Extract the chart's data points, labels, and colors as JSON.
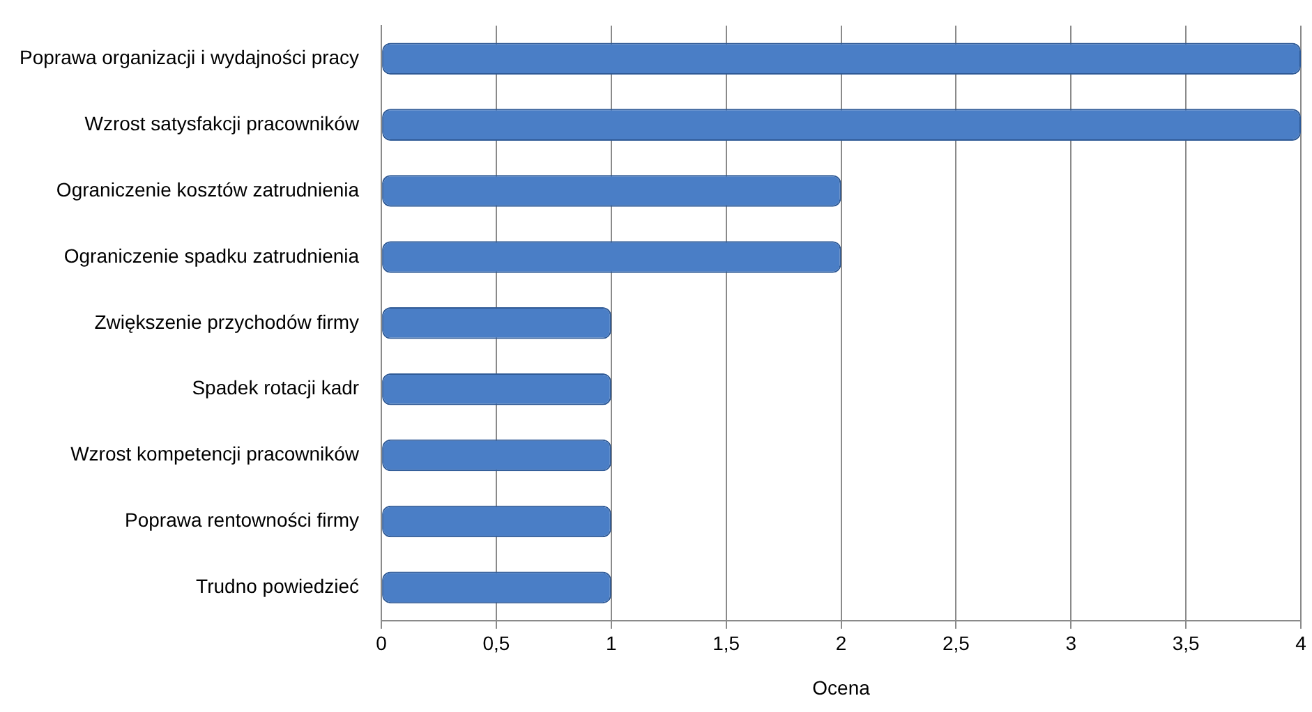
{
  "chart_data": {
    "type": "bar",
    "orientation": "horizontal",
    "xlabel": "Ocena",
    "categories": [
      "Poprawa organizacji i wydajności pracy",
      "Wzrost satysfakcji pracowników",
      "Ograniczenie kosztów zatrudnienia",
      "Ograniczenie spadku zatrudnienia",
      "Zwiększenie przychodów firmy",
      "Spadek rotacji kadr",
      "Wzrost kompetencji pracowników",
      "Poprawa rentowności firmy",
      "Trudno powiedzieć"
    ],
    "values": [
      4,
      4,
      2,
      2,
      1,
      1,
      1,
      1,
      1
    ],
    "color": "#4a7ec6",
    "xlim": [
      0,
      4
    ],
    "xticks": [
      0,
      {
        "value": 0.5,
        "label": "0,5"
      },
      1,
      {
        "value": 1.5,
        "label": "1,5"
      },
      2,
      {
        "value": 2.5,
        "label": "2,5"
      },
      3,
      {
        "value": 3.5,
        "label": "3,5"
      },
      4
    ],
    "grid": "x"
  }
}
